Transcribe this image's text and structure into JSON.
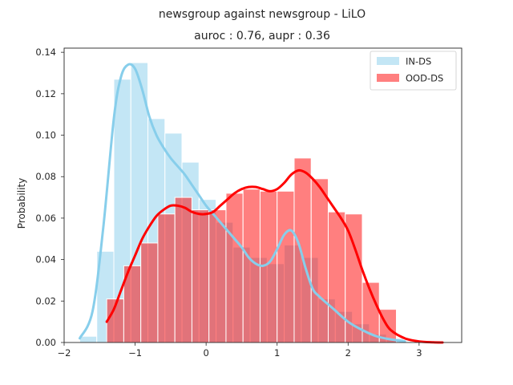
{
  "chart_data": {
    "type": "bar",
    "title": "newsgroup against newsgroup  - LiLO",
    "subtitle": "auroc : 0.76, aupr : 0.36",
    "xlabel": "",
    "ylabel": "Probability",
    "xlim": [
      -2.0,
      3.6
    ],
    "ylim": [
      0.0,
      0.142
    ],
    "xticks": [
      -2,
      -1,
      0,
      1,
      2,
      3
    ],
    "yticks": [
      0.0,
      0.02,
      0.04,
      0.06,
      0.08,
      0.1,
      0.12,
      0.14
    ],
    "xtick_labels": [
      "−2",
      "−1",
      "0",
      "1",
      "2",
      "3"
    ],
    "ytick_labels": [
      "0.00",
      "0.02",
      "0.04",
      "0.06",
      "0.08",
      "0.10",
      "0.12",
      "0.14"
    ],
    "grid": false,
    "legend": {
      "position": "top-right",
      "entries": [
        "IN-DS",
        "OOD-DS"
      ]
    },
    "series": [
      {
        "name": "IN-DS",
        "color": "#87ceeb",
        "bar_alpha": 0.5,
        "bins": [
          [
            -1.78,
            -1.54,
            0.003
          ],
          [
            -1.54,
            -1.3,
            0.044
          ],
          [
            -1.3,
            -1.06,
            0.127
          ],
          [
            -1.06,
            -0.82,
            0.135
          ],
          [
            -0.82,
            -0.58,
            0.108
          ],
          [
            -0.58,
            -0.34,
            0.101
          ],
          [
            -0.34,
            -0.1,
            0.087
          ],
          [
            -0.1,
            0.14,
            0.069
          ],
          [
            0.14,
            0.38,
            0.058
          ],
          [
            0.38,
            0.62,
            0.046
          ],
          [
            0.62,
            0.86,
            0.041
          ],
          [
            0.86,
            1.1,
            0.038
          ],
          [
            1.1,
            1.34,
            0.047
          ],
          [
            1.34,
            1.58,
            0.041
          ],
          [
            1.58,
            1.82,
            0.021
          ],
          [
            1.82,
            2.06,
            0.015
          ],
          [
            2.06,
            2.3,
            0.009
          ],
          [
            2.3,
            2.54,
            0.004
          ],
          [
            2.54,
            2.78,
            0.002
          ]
        ],
        "kde": [
          [
            -1.78,
            0.002
          ],
          [
            -1.6,
            0.015
          ],
          [
            -1.45,
            0.055
          ],
          [
            -1.3,
            0.108
          ],
          [
            -1.2,
            0.128
          ],
          [
            -1.1,
            0.134
          ],
          [
            -1.0,
            0.132
          ],
          [
            -0.9,
            0.122
          ],
          [
            -0.8,
            0.109
          ],
          [
            -0.7,
            0.1
          ],
          [
            -0.6,
            0.094
          ],
          [
            -0.5,
            0.089
          ],
          [
            -0.4,
            0.085
          ],
          [
            -0.3,
            0.081
          ],
          [
            -0.2,
            0.076
          ],
          [
            -0.1,
            0.071
          ],
          [
            0.0,
            0.066
          ],
          [
            0.1,
            0.062
          ],
          [
            0.2,
            0.058
          ],
          [
            0.3,
            0.054
          ],
          [
            0.4,
            0.05
          ],
          [
            0.5,
            0.046
          ],
          [
            0.6,
            0.041
          ],
          [
            0.7,
            0.038
          ],
          [
            0.8,
            0.037
          ],
          [
            0.9,
            0.039
          ],
          [
            1.0,
            0.045
          ],
          [
            1.1,
            0.052
          ],
          [
            1.2,
            0.054
          ],
          [
            1.3,
            0.048
          ],
          [
            1.4,
            0.036
          ],
          [
            1.5,
            0.026
          ],
          [
            1.6,
            0.022
          ],
          [
            1.8,
            0.016
          ],
          [
            2.0,
            0.01
          ],
          [
            2.2,
            0.006
          ],
          [
            2.4,
            0.003
          ],
          [
            2.6,
            0.0015
          ],
          [
            2.8,
            0.0005
          ]
        ]
      },
      {
        "name": "OOD-DS",
        "color": "#ff0000",
        "bar_alpha": 0.5,
        "bins": [
          [
            -1.4,
            -1.16,
            0.021
          ],
          [
            -1.16,
            -0.92,
            0.037
          ],
          [
            -0.92,
            -0.68,
            0.048
          ],
          [
            -0.68,
            -0.44,
            0.062
          ],
          [
            -0.44,
            -0.2,
            0.07
          ],
          [
            -0.2,
            0.04,
            0.064
          ],
          [
            0.04,
            0.28,
            0.064
          ],
          [
            0.28,
            0.52,
            0.072
          ],
          [
            0.52,
            0.76,
            0.074
          ],
          [
            0.76,
            1.0,
            0.073
          ],
          [
            1.0,
            1.24,
            0.073
          ],
          [
            1.24,
            1.48,
            0.089
          ],
          [
            1.48,
            1.72,
            0.079
          ],
          [
            1.72,
            1.96,
            0.063
          ],
          [
            1.96,
            2.2,
            0.062
          ],
          [
            2.2,
            2.44,
            0.029
          ],
          [
            2.44,
            2.68,
            0.016
          ]
        ],
        "kde": [
          [
            -1.4,
            0.01
          ],
          [
            -1.3,
            0.016
          ],
          [
            -1.2,
            0.025
          ],
          [
            -1.1,
            0.034
          ],
          [
            -1.0,
            0.042
          ],
          [
            -0.9,
            0.05
          ],
          [
            -0.8,
            0.056
          ],
          [
            -0.7,
            0.061
          ],
          [
            -0.6,
            0.064
          ],
          [
            -0.5,
            0.066
          ],
          [
            -0.4,
            0.066
          ],
          [
            -0.3,
            0.065
          ],
          [
            -0.2,
            0.063
          ],
          [
            -0.1,
            0.062
          ],
          [
            0.0,
            0.062
          ],
          [
            0.1,
            0.063
          ],
          [
            0.2,
            0.066
          ],
          [
            0.3,
            0.069
          ],
          [
            0.4,
            0.072
          ],
          [
            0.5,
            0.074
          ],
          [
            0.6,
            0.075
          ],
          [
            0.7,
            0.075
          ],
          [
            0.8,
            0.074
          ],
          [
            0.9,
            0.073
          ],
          [
            1.0,
            0.074
          ],
          [
            1.1,
            0.077
          ],
          [
            1.2,
            0.081
          ],
          [
            1.3,
            0.083
          ],
          [
            1.4,
            0.082
          ],
          [
            1.5,
            0.079
          ],
          [
            1.6,
            0.075
          ],
          [
            1.7,
            0.07
          ],
          [
            1.8,
            0.065
          ],
          [
            1.9,
            0.06
          ],
          [
            2.0,
            0.054
          ],
          [
            2.1,
            0.045
          ],
          [
            2.2,
            0.035
          ],
          [
            2.3,
            0.026
          ],
          [
            2.4,
            0.018
          ],
          [
            2.5,
            0.011
          ],
          [
            2.6,
            0.006
          ],
          [
            2.8,
            0.002
          ],
          [
            3.0,
            0.0005
          ],
          [
            3.2,
            0.0001
          ],
          [
            3.33,
            0.0
          ]
        ]
      }
    ]
  }
}
